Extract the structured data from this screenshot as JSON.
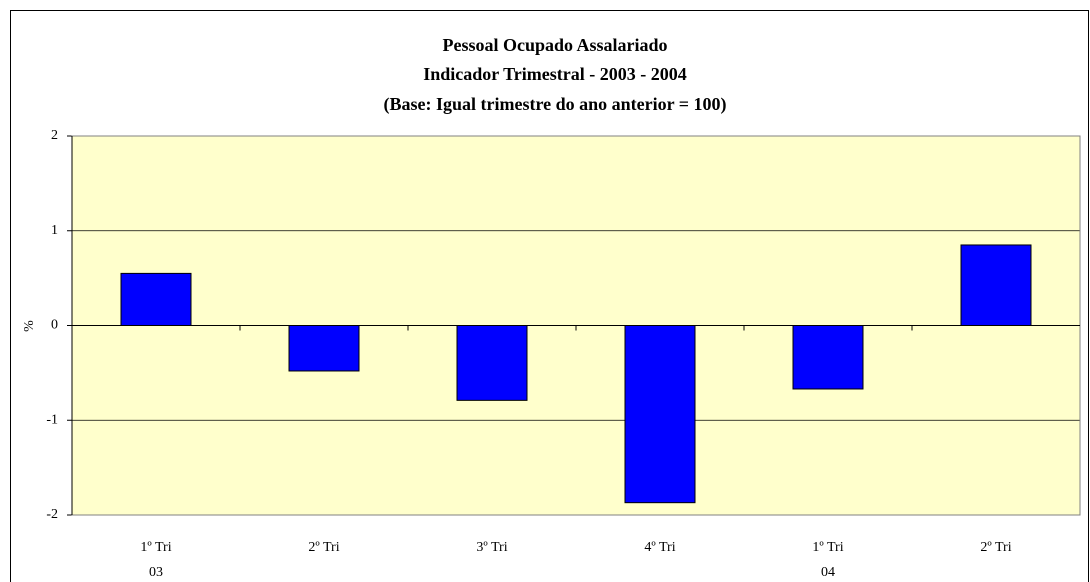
{
  "chart_data": {
    "type": "bar",
    "title": "Pessoal Ocupado Assalariado",
    "subtitle": [
      "Indicador Trimestral - 2003 - 2004",
      "(Base: Igual trimestre do ano anterior = 100)"
    ],
    "y_label": "%",
    "categories": [
      "1º Tri",
      "2º Tri",
      "3º Tri",
      "4º Tri",
      "1º Tri",
      "2º Tri"
    ],
    "group_labels": [
      "03",
      null,
      null,
      null,
      "04",
      null
    ],
    "values": [
      0.55,
      -0.48,
      -0.79,
      -1.87,
      -0.67,
      0.85
    ],
    "color": "#0000ff",
    "plot_background": "#ffffcc",
    "ylim": [
      -2,
      2
    ],
    "yticks": [
      -2,
      -1,
      0,
      1,
      2
    ],
    "grid": true
  }
}
